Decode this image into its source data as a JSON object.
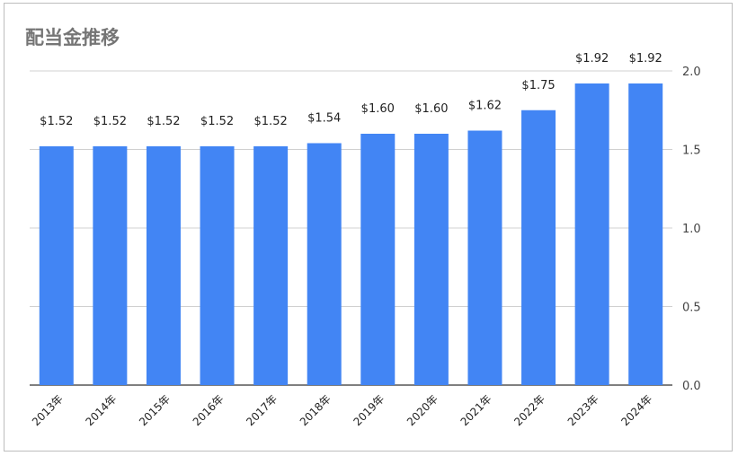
{
  "chart_data": {
    "type": "bar",
    "title": "配当金推移",
    "categories": [
      "2013年",
      "2014年",
      "2015年",
      "2016年",
      "2017年",
      "2018年",
      "2019年",
      "2020年",
      "2021年",
      "2022年",
      "2023年",
      "2024年"
    ],
    "values": [
      1.52,
      1.52,
      1.52,
      1.52,
      1.52,
      1.54,
      1.6,
      1.6,
      1.62,
      1.75,
      1.92,
      1.92
    ],
    "data_labels": [
      "$1.52",
      "$1.52",
      "$1.52",
      "$1.52",
      "$1.52",
      "$1.54",
      "$1.60",
      "$1.60",
      "$1.62",
      "$1.75",
      "$1.92",
      "$1.92"
    ],
    "y_ticks": [
      "0.0",
      "0.5",
      "1.0",
      "1.5",
      "2.0"
    ],
    "ylim": [
      0,
      2.0
    ],
    "y_axis_side": "right",
    "grid": true,
    "legend": "none",
    "bar_color": "#4285f4"
  }
}
